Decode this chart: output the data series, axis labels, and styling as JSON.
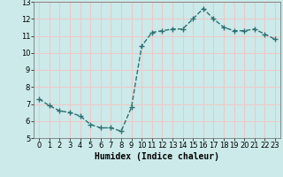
{
  "x": [
    0,
    1,
    2,
    3,
    4,
    5,
    6,
    7,
    8,
    9,
    10,
    11,
    12,
    13,
    14,
    15,
    16,
    17,
    18,
    19,
    20,
    21,
    22,
    23
  ],
  "y": [
    7.3,
    6.9,
    6.6,
    6.5,
    6.3,
    5.8,
    5.6,
    5.6,
    5.4,
    6.8,
    10.4,
    11.2,
    11.3,
    11.4,
    11.4,
    12.0,
    12.6,
    12.0,
    11.5,
    11.3,
    11.3,
    11.4,
    11.1,
    10.8
  ],
  "xlabel": "Humidex (Indice chaleur)",
  "ylim": [
    5,
    13
  ],
  "xlim": [
    -0.5,
    23.5
  ],
  "yticks": [
    5,
    6,
    7,
    8,
    9,
    10,
    11,
    12,
    13
  ],
  "xticks": [
    0,
    1,
    2,
    3,
    4,
    5,
    6,
    7,
    8,
    9,
    10,
    11,
    12,
    13,
    14,
    15,
    16,
    17,
    18,
    19,
    20,
    21,
    22,
    23
  ],
  "line_color": "#2e7070",
  "marker": "+",
  "marker_size": 4,
  "line_width": 1.0,
  "bg_color": "#cceaea",
  "grid_color": "#eec8c8",
  "xlabel_fontsize": 7,
  "tick_fontsize": 6
}
